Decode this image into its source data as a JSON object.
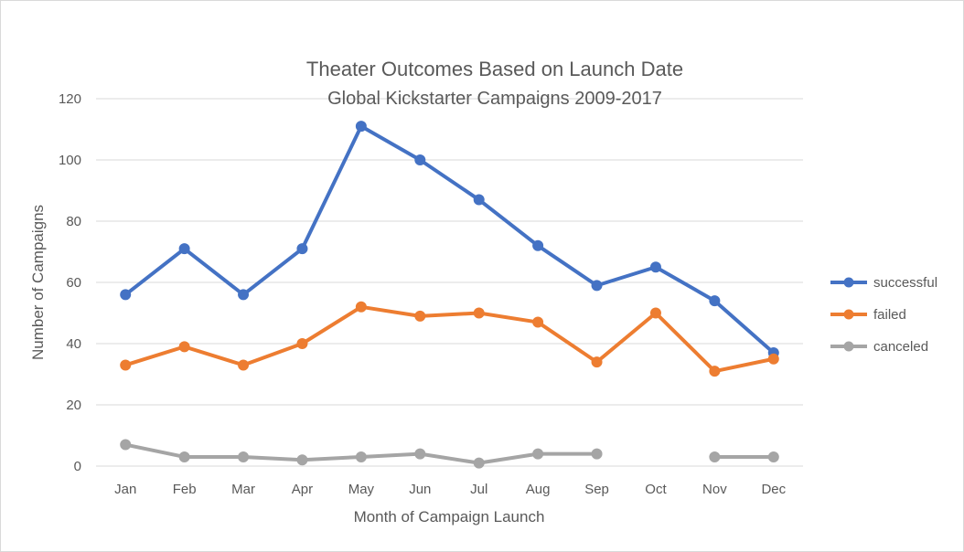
{
  "chart_data": {
    "type": "line",
    "title": "Theater Outcomes Based on Launch Date",
    "subtitle": "Global Kickstarter Campaigns 2009-2017",
    "xlabel": "Month of Campaign Launch",
    "ylabel": "Number of Campaigns",
    "categories": [
      "Jan",
      "Feb",
      "Mar",
      "Apr",
      "May",
      "Jun",
      "Jul",
      "Aug",
      "Sep",
      "Oct",
      "Nov",
      "Dec"
    ],
    "ylim": [
      0,
      120
    ],
    "yticks": [
      0,
      20,
      40,
      60,
      80,
      100,
      120
    ],
    "grid": true,
    "legend_position": "right",
    "series": [
      {
        "name": "successful",
        "color": "#4472C4",
        "values": [
          56,
          71,
          56,
          71,
          111,
          100,
          87,
          72,
          59,
          65,
          54,
          37
        ]
      },
      {
        "name": "failed",
        "color": "#ED7D31",
        "values": [
          33,
          39,
          33,
          40,
          52,
          49,
          50,
          47,
          34,
          50,
          31,
          35
        ]
      },
      {
        "name": "canceled",
        "color": "#A5A5A5",
        "values": [
          7,
          3,
          3,
          2,
          3,
          4,
          1,
          4,
          4,
          null,
          3,
          3
        ]
      }
    ]
  }
}
